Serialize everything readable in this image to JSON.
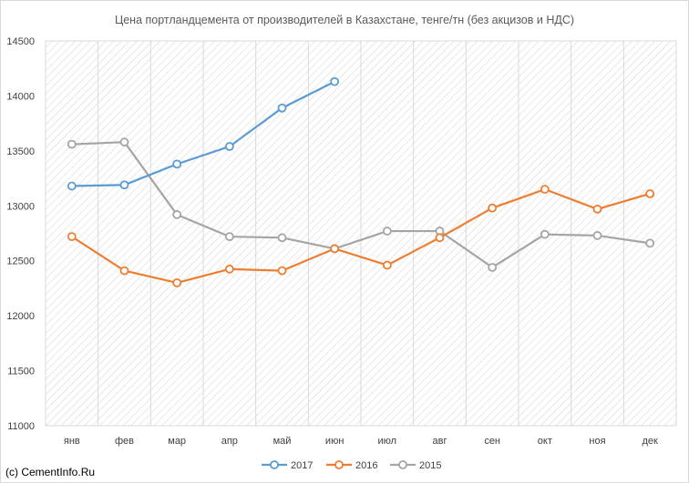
{
  "chart_data": {
    "type": "line",
    "title": "Цена портландцемента от производителей в Казахстане, тенге/тн (без акцизов и НДС)",
    "xlabel": "",
    "ylabel": "",
    "categories": [
      "янв",
      "фев",
      "мар",
      "апр",
      "май",
      "июн",
      "июл",
      "авг",
      "сен",
      "окт",
      "ноя",
      "дек"
    ],
    "ylim": [
      11000,
      14500
    ],
    "yticks": [
      11000,
      11500,
      12000,
      12500,
      13000,
      13500,
      14000,
      14500
    ],
    "grid": "vertical",
    "legend": "bottom",
    "series": [
      {
        "name": "2017",
        "color": "#5B9BD5",
        "values": [
          13180,
          13190,
          13380,
          13540,
          13890,
          14130,
          null,
          null,
          null,
          null,
          null,
          null
        ]
      },
      {
        "name": "2016",
        "color": "#ED7D31",
        "values": [
          12720,
          12410,
          12300,
          12425,
          12410,
          12610,
          12460,
          12710,
          12980,
          13150,
          12970,
          13110
        ]
      },
      {
        "name": "2015",
        "color": "#A5A5A5",
        "values": [
          13560,
          13580,
          12920,
          12720,
          12710,
          12610,
          12770,
          12770,
          12440,
          12740,
          12730,
          12660
        ]
      }
    ]
  },
  "source_text": "(c) CementInfo.Ru"
}
